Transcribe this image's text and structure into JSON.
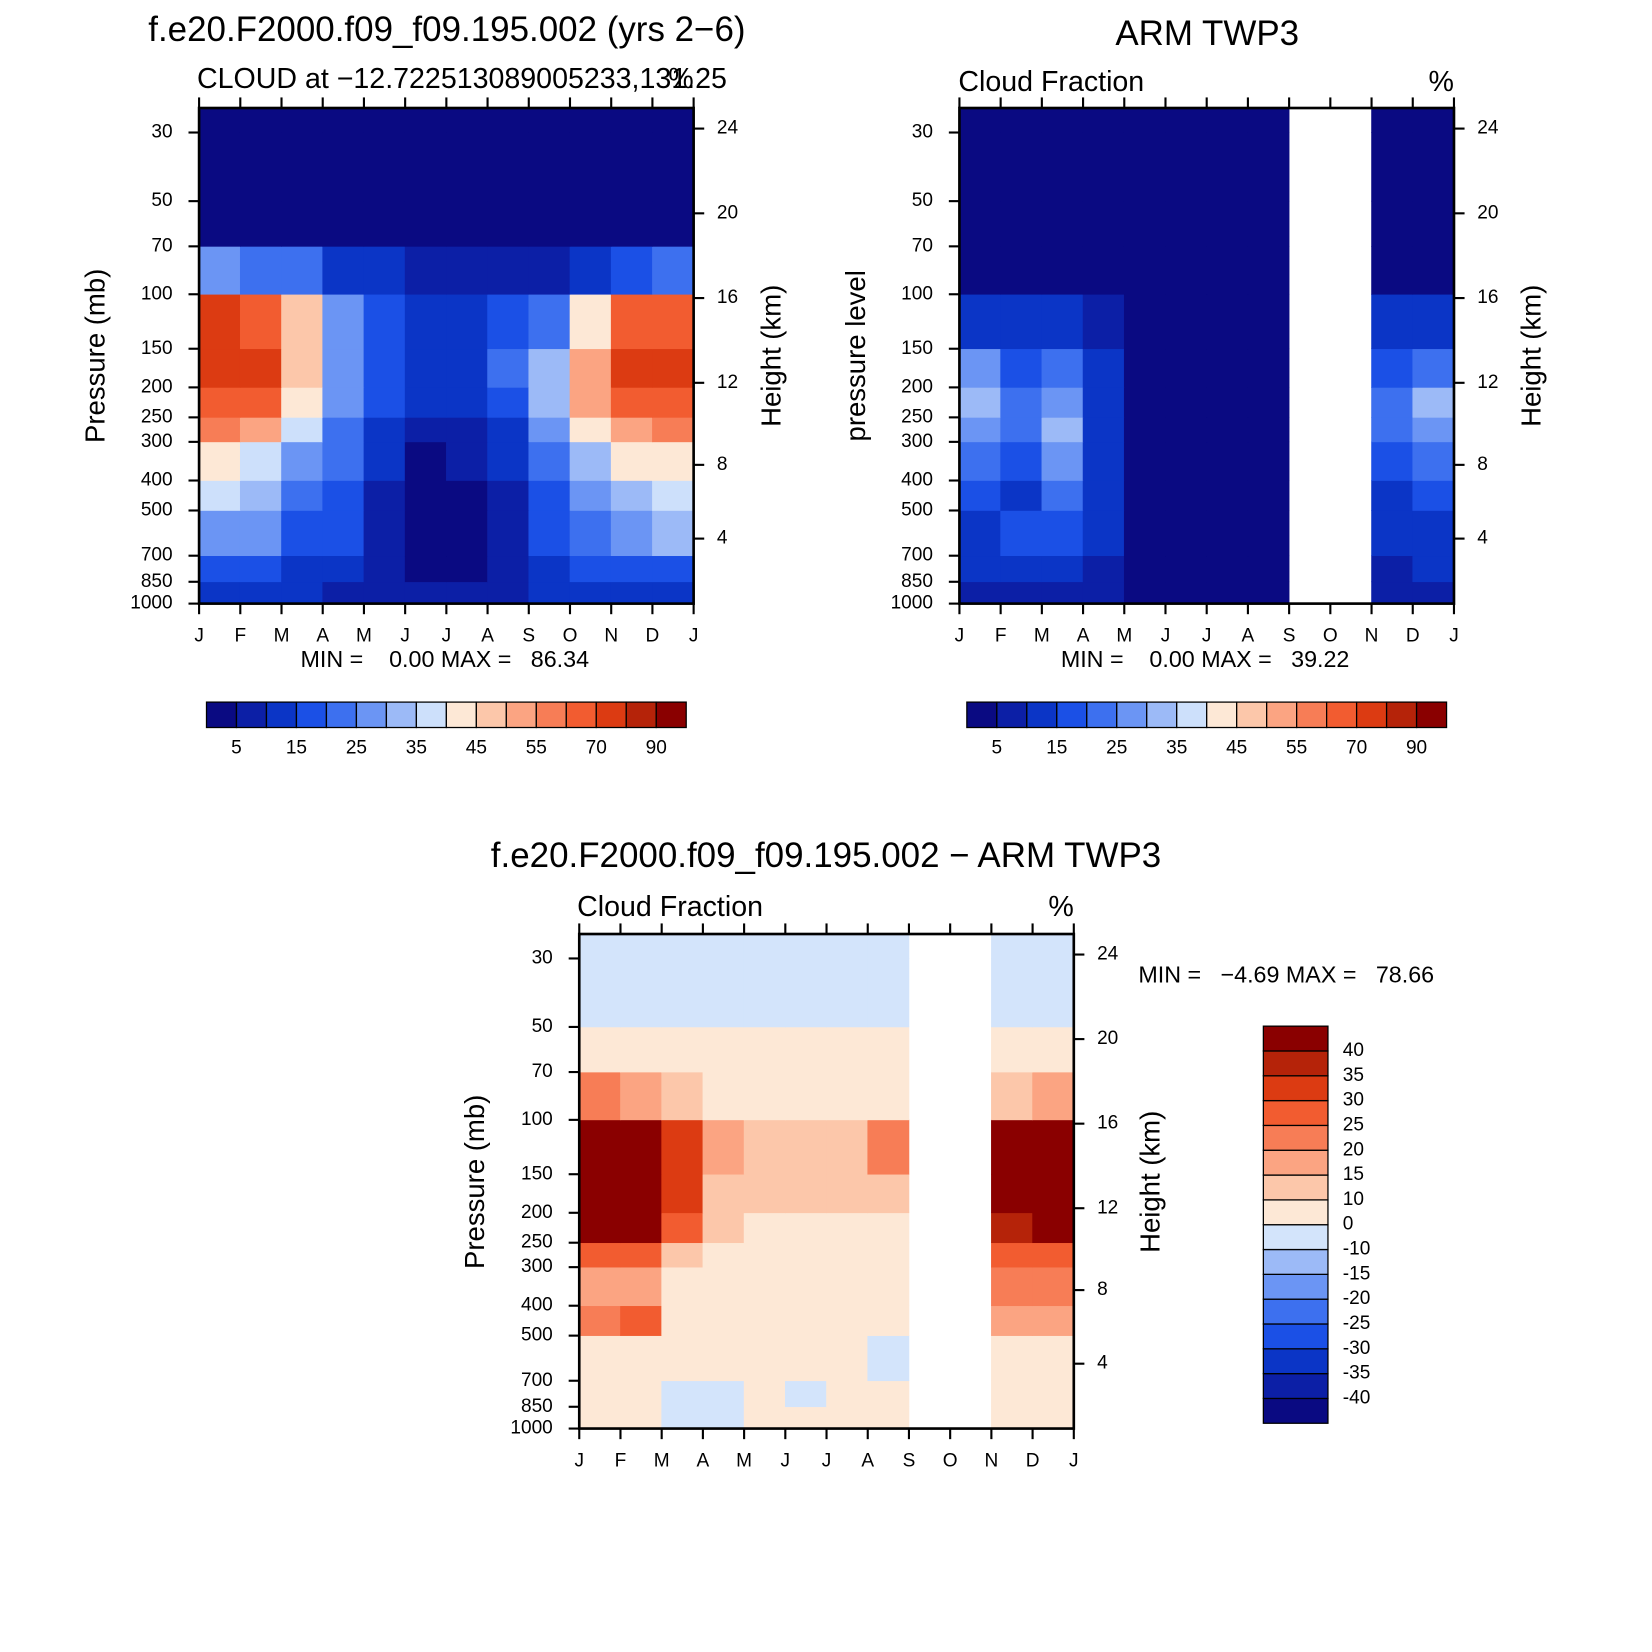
{
  "chart_data": [
    {
      "type": "contour",
      "title": "f.e20.F2000.f09_f09.195.002 (yrs 2−6)",
      "subtitle": "CLOUD at −12.722513089005233,131.25",
      "units": "%",
      "y_label": "Pressure (mb)",
      "y2_label": "Height (km)",
      "min_max": "MIN =    0.00 MAX =   86.34",
      "categories": [
        "J",
        "F",
        "M",
        "A",
        "M",
        "J",
        "J",
        "A",
        "S",
        "O",
        "N",
        "D",
        "J"
      ],
      "ylim": [
        1000,
        25
      ],
      "yticks": [
        1000,
        850,
        700,
        500,
        400,
        300,
        250,
        200,
        150,
        100,
        70,
        50,
        30
      ],
      "log_scale": true,
      "y2scale": "standard-atmosphere",
      "y2ticks": [
        4,
        8,
        12,
        16,
        20,
        24
      ],
      "levels": [
        5,
        10,
        15,
        20,
        25,
        30,
        35,
        40,
        45,
        50,
        55,
        60,
        70,
        80,
        90
      ],
      "label_every": 2,
      "colorbar": "horizontal",
      "colors": [
        "#0a0a82",
        "#0c1fa6",
        "#0b35c6",
        "#1b50e6",
        "#3d70ef",
        "#6b95f4",
        "#9cbaf7",
        "#cde0fb",
        "#fde8d6",
        "#fcc7aa",
        "#fba482",
        "#f77d56",
        "#f25c30",
        "#dc3b12",
        "#b52309",
        "#8a0000"
      ],
      "field": [
        [
          12,
          12,
          10,
          8,
          6,
          5,
          5,
          6,
          10,
          12,
          12,
          12
        ],
        [
          15,
          15,
          12,
          10,
          6,
          4,
          4,
          8,
          12,
          15,
          16,
          16
        ],
        [
          28,
          25,
          18,
          15,
          6,
          3,
          3,
          6,
          15,
          22,
          28,
          30
        ],
        [
          36,
          32,
          22,
          18,
          8,
          3,
          3,
          8,
          18,
          28,
          34,
          36
        ],
        [
          42,
          38,
          28,
          20,
          10,
          4,
          5,
          10,
          22,
          34,
          40,
          42
        ],
        [
          55,
          50,
          35,
          22,
          14,
          8,
          8,
          14,
          28,
          42,
          52,
          55
        ],
        [
          68,
          62,
          42,
          26,
          16,
          12,
          12,
          16,
          32,
          50,
          64,
          68
        ],
        [
          78,
          72,
          48,
          28,
          16,
          14,
          14,
          20,
          32,
          54,
          70,
          76
        ],
        [
          70,
          65,
          45,
          28,
          16,
          12,
          12,
          16,
          24,
          42,
          62,
          68
        ],
        [
          25,
          24,
          20,
          14,
          10,
          7,
          6,
          7,
          9,
          12,
          18,
          24
        ],
        [
          3,
          3,
          3,
          3,
          3,
          3,
          3,
          3,
          3,
          3,
          3,
          3
        ],
        [
          2,
          2,
          2,
          2,
          2,
          2,
          2,
          2,
          2,
          2,
          2,
          2
        ],
        [
          2,
          2,
          2,
          2,
          2,
          2,
          2,
          2,
          2,
          2,
          2,
          2
        ]
      ]
    },
    {
      "type": "contour",
      "title": "ARM TWP3",
      "subtitle": "Cloud Fraction",
      "units": "%",
      "y_label": "pressure level",
      "y2_label": "Height (km)",
      "min_max": "MIN =    0.00 MAX =   39.22",
      "categories": [
        "J",
        "F",
        "M",
        "A",
        "M",
        "J",
        "J",
        "A",
        "S",
        "O",
        "N",
        "D",
        "J"
      ],
      "ylim": [
        1000,
        25
      ],
      "yticks": [
        1000,
        850,
        700,
        500,
        400,
        300,
        250,
        200,
        150,
        100,
        70,
        50,
        30
      ],
      "log_scale": true,
      "y2scale": "standard-atmosphere",
      "y2ticks": [
        4,
        8,
        12,
        16,
        20,
        24
      ],
      "levels": [
        5,
        10,
        15,
        20,
        25,
        30,
        35,
        40,
        45,
        50,
        55,
        60,
        70,
        80,
        90
      ],
      "label_every": 2,
      "colorbar": "horizontal",
      "colors": [
        "#0a0a82",
        "#0c1fa6",
        "#0b35c6",
        "#1b50e6",
        "#3d70ef",
        "#6b95f4",
        "#9cbaf7",
        "#cde0fb",
        "#fde8d6",
        "#fcc7aa",
        "#fba482",
        "#f77d56",
        "#f25c30",
        "#dc3b12",
        "#b52309",
        "#8a0000"
      ],
      "field": [
        [
          8,
          8,
          8,
          6,
          3,
          2,
          2,
          2,
          null,
          null,
          5,
          5
        ],
        [
          12,
          12,
          14,
          8,
          4,
          3,
          2,
          2,
          null,
          null,
          8,
          10
        ],
        [
          14,
          15,
          18,
          10,
          3,
          2,
          2,
          2,
          null,
          null,
          12,
          14
        ],
        [
          16,
          14,
          22,
          10,
          2,
          2,
          2,
          2,
          null,
          null,
          14,
          16
        ],
        [
          22,
          18,
          26,
          12,
          2,
          2,
          2,
          2,
          null,
          null,
          18,
          22
        ],
        [
          28,
          20,
          30,
          12,
          2,
          2,
          2,
          2,
          null,
          null,
          20,
          28
        ],
        [
          30,
          20,
          28,
          12,
          2,
          2,
          2,
          2,
          null,
          null,
          20,
          30
        ],
        [
          26,
          18,
          20,
          10,
          2,
          2,
          2,
          2,
          null,
          null,
          18,
          24
        ],
        [
          12,
          10,
          10,
          6,
          2,
          2,
          2,
          2,
          null,
          null,
          10,
          12
        ],
        [
          2,
          2,
          2,
          2,
          2,
          2,
          2,
          2,
          null,
          null,
          2,
          2
        ],
        [
          2,
          2,
          2,
          2,
          2,
          2,
          2,
          2,
          null,
          null,
          2,
          2
        ],
        [
          2,
          2,
          2,
          2,
          2,
          2,
          2,
          2,
          null,
          null,
          2,
          2
        ],
        [
          2,
          2,
          2,
          2,
          2,
          2,
          2,
          2,
          null,
          null,
          2,
          2
        ]
      ]
    },
    {
      "type": "contour",
      "title": "f.e20.F2000.f09_f09.195.002 − ARM TWP3",
      "subtitle": "Cloud Fraction",
      "units": "%",
      "y_label": "Pressure (mb)",
      "y2_label": "Height (km)",
      "min_max": "MIN =   −4.69 MAX =   78.66",
      "categories": [
        "J",
        "F",
        "M",
        "A",
        "M",
        "J",
        "J",
        "A",
        "S",
        "O",
        "N",
        "D",
        "J"
      ],
      "ylim": [
        1000,
        25
      ],
      "yticks": [
        1000,
        850,
        700,
        500,
        400,
        300,
        250,
        200,
        150,
        100,
        70,
        50,
        30
      ],
      "log_scale": true,
      "y2scale": "standard-atmosphere",
      "y2ticks": [
        4,
        8,
        12,
        16,
        20,
        24
      ],
      "levels": [
        -40,
        -35,
        -30,
        -25,
        -20,
        -15,
        -10,
        0,
        10,
        15,
        20,
        25,
        30,
        35,
        40
      ],
      "label_every": 1,
      "colorbar": "vertical",
      "colors": [
        "#0a0a82",
        "#0c1fa6",
        "#0b35c6",
        "#1b50e6",
        "#3d70ef",
        "#6b95f4",
        "#9cbaf7",
        "#d3e4fb",
        "#fde8d6",
        "#fcc7aa",
        "#fba482",
        "#f77d56",
        "#f25c30",
        "#dc3b12",
        "#b52309",
        "#8a0000"
      ],
      "field": [
        [
          5,
          5,
          -3,
          -3,
          3,
          3,
          3,
          3,
          null,
          null,
          5,
          5
        ],
        [
          5,
          3,
          -5,
          -3,
          3,
          -3,
          3,
          3,
          null,
          null,
          5,
          5
        ],
        [
          8,
          6,
          3,
          3,
          4,
          3,
          3,
          -3,
          null,
          null,
          8,
          8
        ],
        [
          20,
          28,
          5,
          5,
          6,
          3,
          3,
          5,
          null,
          null,
          18,
          18
        ],
        [
          18,
          15,
          5,
          6,
          8,
          3,
          3,
          5,
          null,
          null,
          20,
          20
        ],
        [
          28,
          28,
          12,
          8,
          6,
          4,
          4,
          5,
          null,
          null,
          28,
          28
        ],
        [
          40,
          40,
          25,
          12,
          8,
          6,
          6,
          8,
          null,
          null,
          38,
          40
        ],
        [
          52,
          50,
          30,
          14,
          10,
          10,
          10,
          12,
          null,
          null,
          48,
          52
        ],
        [
          55,
          52,
          30,
          18,
          12,
          12,
          14,
          20,
          null,
          null,
          50,
          55
        ],
        [
          20,
          18,
          12,
          8,
          6,
          5,
          5,
          6,
          null,
          null,
          10,
          18
        ],
        [
          5,
          5,
          5,
          5,
          3,
          3,
          3,
          3,
          null,
          null,
          5,
          5
        ],
        [
          -3,
          -3,
          -3,
          -3,
          -3,
          -3,
          -3,
          -3,
          null,
          null,
          -3,
          -3
        ],
        [
          -3,
          -3,
          -3,
          -3,
          -3,
          -3,
          -3,
          -3,
          null,
          null,
          -3,
          -3
        ]
      ]
    }
  ]
}
